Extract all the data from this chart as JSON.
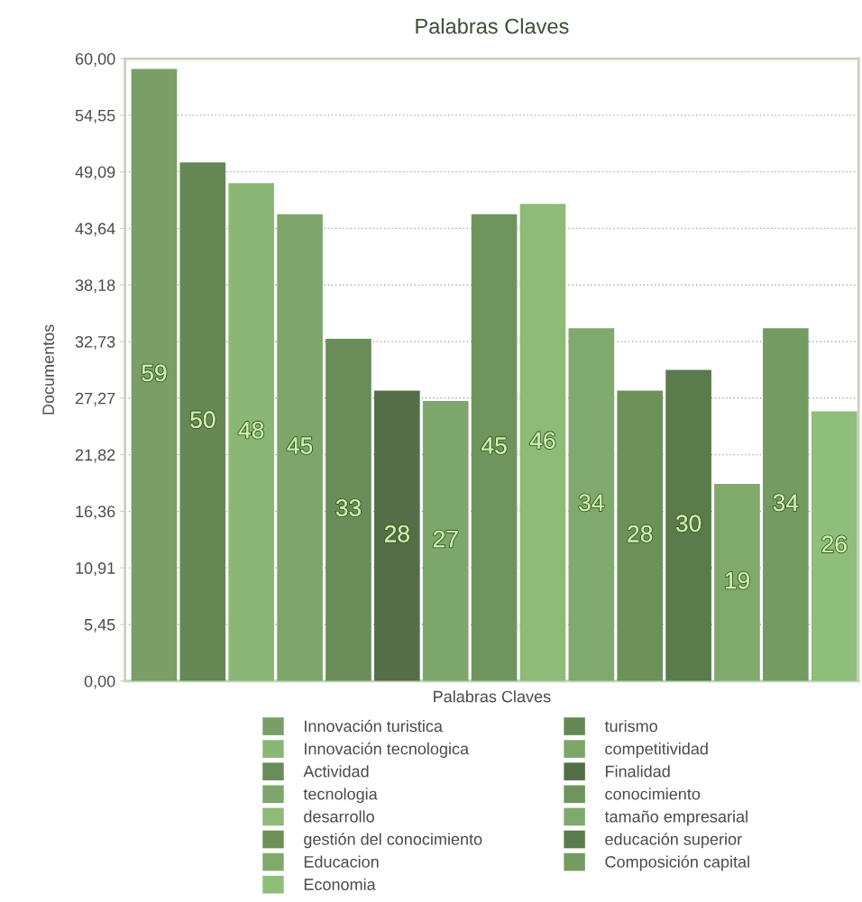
{
  "chart_data": {
    "type": "bar",
    "title": "Palabras Claves",
    "xlabel": "Palabras Claves",
    "ylabel": "Documentos",
    "categories": [
      null,
      null,
      null,
      null,
      null,
      null,
      null,
      null,
      null,
      null,
      null,
      null,
      null,
      null,
      null
    ],
    "series": [
      {
        "name": "Innovación turistica",
        "color": "#799e66",
        "values": [
          59,
          null,
          null,
          null,
          null,
          null,
          null,
          null,
          null,
          null,
          null,
          null,
          null,
          null,
          null
        ]
      },
      {
        "name": "turismo",
        "color": "#658855",
        "values": [
          null,
          50,
          null,
          null,
          null,
          null,
          null,
          null,
          null,
          null,
          null,
          null,
          null,
          null,
          null
        ]
      },
      {
        "name": "Innovación tecnologica",
        "color": "#8bb776",
        "values": [
          null,
          null,
          48,
          null,
          null,
          null,
          null,
          null,
          null,
          null,
          null,
          null,
          null,
          null,
          null
        ]
      },
      {
        "name": "competitividad",
        "color": "#7ea66b",
        "values": [
          null,
          null,
          null,
          45,
          null,
          null,
          null,
          null,
          null,
          null,
          null,
          null,
          null,
          null,
          null
        ]
      },
      {
        "name": "Actividad",
        "color": "#698d58",
        "values": [
          null,
          null,
          null,
          null,
          33,
          null,
          null,
          null,
          null,
          null,
          null,
          null,
          null,
          null,
          null
        ]
      },
      {
        "name": "Finalidad",
        "color": "#546f48",
        "values": [
          null,
          null,
          null,
          null,
          null,
          28,
          null,
          null,
          null,
          null,
          null,
          null,
          null,
          null,
          null
        ]
      },
      {
        "name": "tecnologia",
        "color": "#7ea76b",
        "values": [
          null,
          null,
          null,
          null,
          null,
          null,
          27,
          null,
          null,
          null,
          null,
          null,
          null,
          null,
          null
        ]
      },
      {
        "name": "conocimiento",
        "color": "#6e955d",
        "values": [
          null,
          null,
          null,
          null,
          null,
          null,
          null,
          45,
          null,
          null,
          null,
          null,
          null,
          null,
          null
        ]
      },
      {
        "name": "desarrollo",
        "color": "#8ebb78",
        "values": [
          null,
          null,
          null,
          null,
          null,
          null,
          null,
          null,
          46,
          null,
          null,
          null,
          null,
          null,
          null
        ]
      },
      {
        "name": "tamaño empresarial",
        "color": "#80a96d",
        "values": [
          null,
          null,
          null,
          null,
          null,
          null,
          null,
          null,
          null,
          34,
          null,
          null,
          null,
          null,
          null
        ]
      },
      {
        "name": "gestión del conocimiento",
        "color": "#6c9159",
        "values": [
          null,
          null,
          null,
          null,
          null,
          null,
          null,
          null,
          null,
          null,
          28,
          null,
          null,
          null,
          null
        ]
      },
      {
        "name": "educación superior",
        "color": "#5a7b4c",
        "values": [
          null,
          null,
          null,
          null,
          null,
          null,
          null,
          null,
          null,
          null,
          null,
          30,
          null,
          null,
          null
        ]
      },
      {
        "name": "Educacion",
        "color": "#80aa6c",
        "values": [
          null,
          null,
          null,
          null,
          null,
          null,
          null,
          null,
          null,
          null,
          null,
          null,
          19,
          null,
          null
        ]
      },
      {
        "name": "Composición capital",
        "color": "#749c62",
        "values": [
          null,
          null,
          null,
          null,
          null,
          null,
          null,
          null,
          null,
          null,
          null,
          null,
          null,
          34,
          null
        ]
      },
      {
        "name": "Economia",
        "color": "#8fbd7a",
        "values": [
          null,
          null,
          null,
          null,
          null,
          null,
          null,
          null,
          null,
          null,
          null,
          null,
          null,
          null,
          26
        ]
      }
    ],
    "ylim": [
      0,
      60
    ],
    "yticks": [
      {
        "value": 0,
        "label": "0,00"
      },
      {
        "value": 5.4545,
        "label": "5,45"
      },
      {
        "value": 10.909,
        "label": "10,91"
      },
      {
        "value": 16.364,
        "label": "16,36"
      },
      {
        "value": 21.818,
        "label": "21,82"
      },
      {
        "value": 27.273,
        "label": "27,27"
      },
      {
        "value": 32.727,
        "label": "32,73"
      },
      {
        "value": 38.182,
        "label": "38,18"
      },
      {
        "value": 43.636,
        "label": "43,64"
      },
      {
        "value": 49.091,
        "label": "49,09"
      },
      {
        "value": 54.545,
        "label": "54,55"
      },
      {
        "value": 60,
        "label": "60,00"
      }
    ],
    "grid": "y",
    "legend": "bottom",
    "data_labels": true
  }
}
